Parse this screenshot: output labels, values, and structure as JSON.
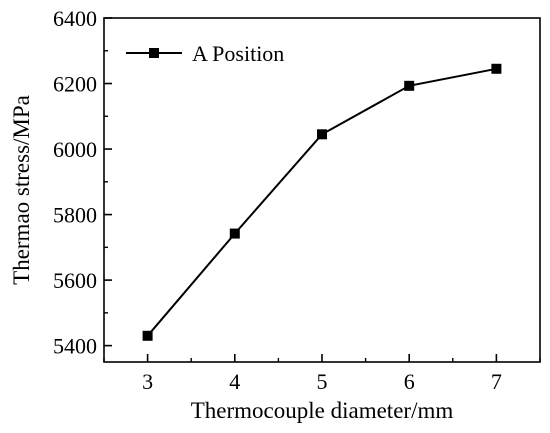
{
  "chart_data": {
    "type": "line",
    "title": "",
    "xlabel": "Thermocouple diameter/mm",
    "ylabel": "Thermao stress/MPa",
    "x": [
      3,
      4,
      5,
      6,
      7
    ],
    "xticks": [
      "3",
      "4",
      "5",
      "6",
      "7"
    ],
    "xlim": [
      2.5,
      7.5
    ],
    "yticks": [
      "5400",
      "5600",
      "5800",
      "6000",
      "6200",
      "6400"
    ],
    "ylim": [
      5350,
      6400
    ],
    "series": [
      {
        "name": "A Position",
        "values": [
          5430,
          5742,
          6045,
          6193,
          6245
        ],
        "color": "#000000",
        "marker": "square"
      }
    ],
    "legend_position": "top-left",
    "grid": false
  }
}
